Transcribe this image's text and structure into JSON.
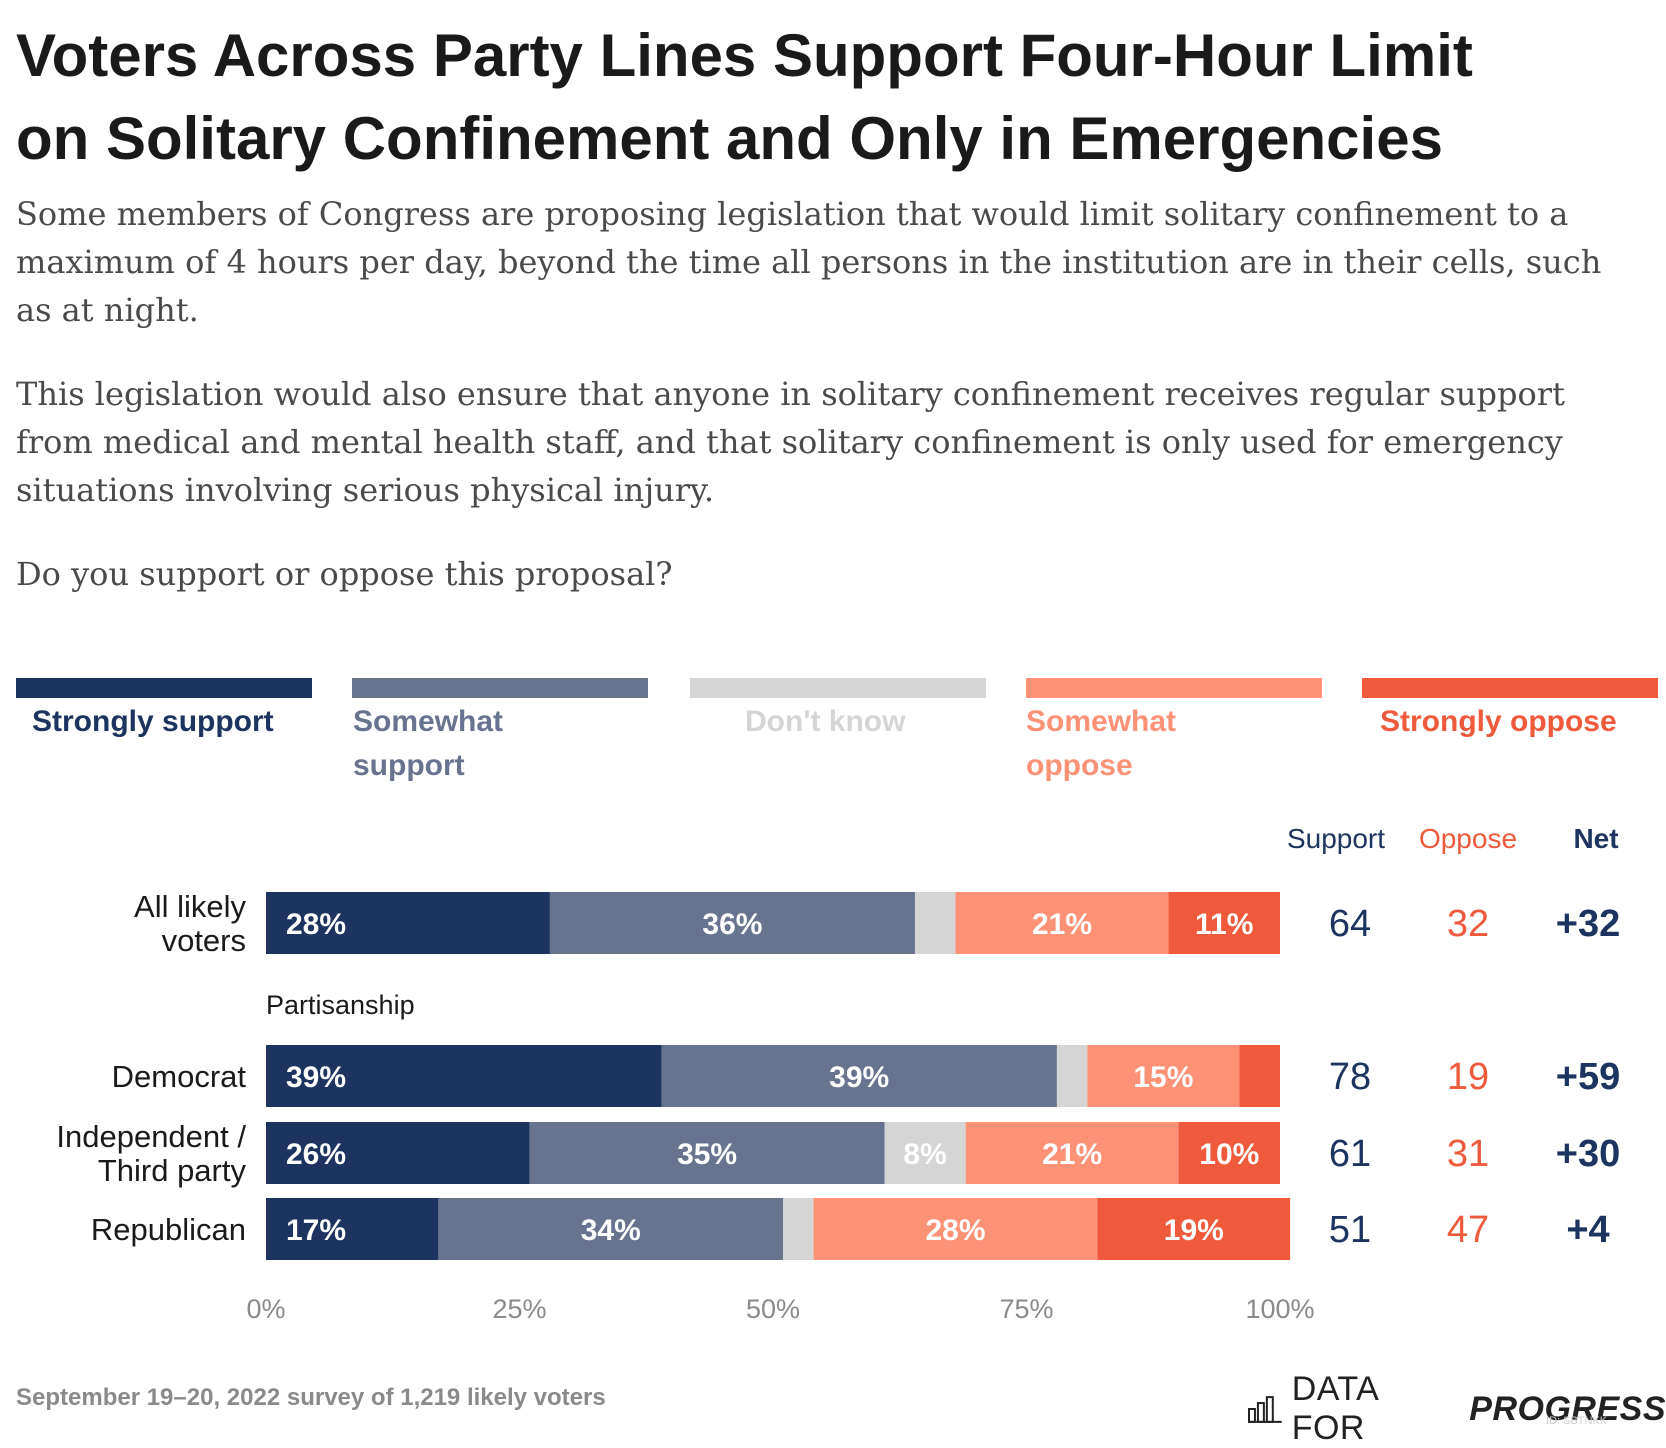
{
  "title": {
    "line1": "Voters Across Party Lines Support Four-Hour Limit",
    "line2": "on Solitary Confinement and Only in Emergencies"
  },
  "question": {
    "p1": "Some members of Congress are proposing legislation that would limit solitary confinement to a maximum of 4 hours per day, beyond the time all persons in the institution are in their cells, such as at night.",
    "p2": "This legislation would also ensure that anyone in solitary confinement receives regular support from medical and mental health staff, and that solitary confinement is only used for emergency situations involving serious physical injury.",
    "p3": "Do you support or oppose this proposal?"
  },
  "colors": {
    "strongly_support": "#1d3461",
    "somewhat_support": "#68738f",
    "dont_know": "#d5d5d5",
    "somewhat_oppose": "#fd9276",
    "strongly_oppose": "#ef5a3c",
    "support_text": "#1d3461",
    "oppose_text": "#ef5a3c"
  },
  "legend": [
    {
      "key": "strongly_support",
      "line1": "Strongly support",
      "line2": ""
    },
    {
      "key": "somewhat_support",
      "line1": "Somewhat",
      "line2": "support"
    },
    {
      "key": "dont_know",
      "line1": "Don't know",
      "line2": ""
    },
    {
      "key": "somewhat_oppose",
      "line1": "Somewhat",
      "line2": "oppose"
    },
    {
      "key": "strongly_oppose",
      "line1": "Strongly oppose",
      "line2": ""
    }
  ],
  "chart_data": {
    "type": "bar",
    "orientation": "horizontal-stacked",
    "xlim": [
      0,
      100
    ],
    "xticks": [
      "0%",
      "25%",
      "50%",
      "75%",
      "100%"
    ],
    "series_names": [
      "Strongly support",
      "Somewhat support",
      "Don't know",
      "Somewhat oppose",
      "Strongly oppose"
    ],
    "column_headers": {
      "support": "Support",
      "oppose": "Oppose",
      "net": "Net"
    },
    "group_label": "Partisanship",
    "rows": [
      {
        "label_lines": [
          "All likely",
          "voters"
        ],
        "values": [
          28,
          36,
          4,
          21,
          11
        ],
        "labels": [
          "28%",
          "36%",
          "",
          "21%",
          "11%"
        ],
        "support": "64",
        "oppose": "32",
        "net": "+32"
      },
      {
        "label_lines": [
          "Democrat"
        ],
        "values": [
          39,
          39,
          3,
          15,
          4
        ],
        "labels": [
          "39%",
          "39%",
          "",
          "15%",
          ""
        ],
        "support": "78",
        "oppose": "19",
        "net": "+59"
      },
      {
        "label_lines": [
          "Independent /",
          "Third party"
        ],
        "values": [
          26,
          35,
          8,
          21,
          10
        ],
        "labels": [
          "26%",
          "35%",
          "8%",
          "21%",
          "10%"
        ],
        "support": "61",
        "oppose": "31",
        "net": "+30"
      },
      {
        "label_lines": [
          "Republican"
        ],
        "values": [
          17,
          34,
          3,
          28,
          19
        ],
        "labels": [
          "17%",
          "34%",
          "",
          "28%",
          "19%"
        ],
        "support": "51",
        "oppose": "47",
        "net": "+4"
      }
    ]
  },
  "footer": {
    "source": "September 19–20, 2022 survey of 1,219 likely voters",
    "brand_light": "DATA FOR",
    "brand_bold": "PROGRESS",
    "id": "ID: SBTNKK"
  }
}
